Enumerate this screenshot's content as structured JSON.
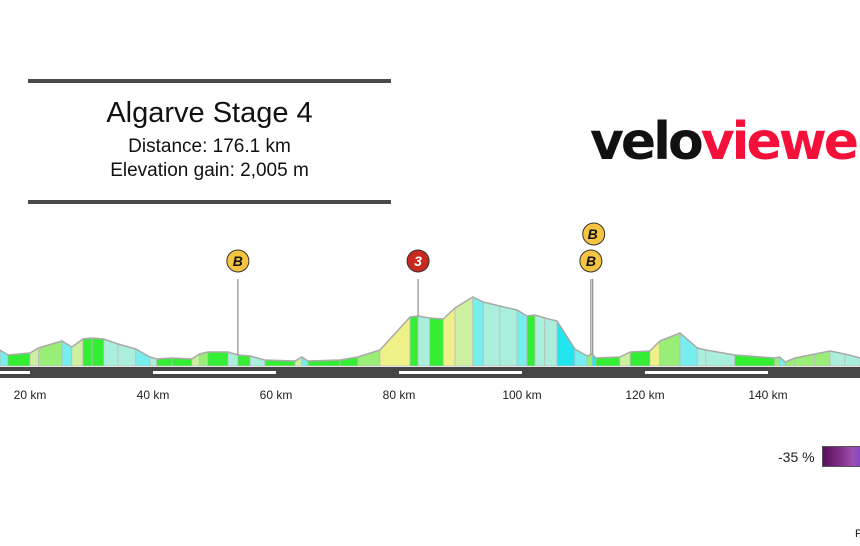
{
  "header": {
    "title": "Algarve Stage 4",
    "distance": "Distance: 176.1 km",
    "elevation_gain": "Elevation gain: 2,005 m"
  },
  "logo": {
    "part1": "velo",
    "part2": "viewer",
    "color1": "#111111",
    "color2": "#f5103a"
  },
  "legend": {
    "min_label": "-35 %"
  },
  "corner_text": "P",
  "chart_data": {
    "type": "area",
    "title": "Algarve Stage 4",
    "x_unit": "km",
    "x_ticks": [
      20,
      40,
      60,
      80,
      100,
      120,
      140
    ],
    "x_tick_labels": [
      "20 km",
      "40 km",
      "60 km",
      "80 km",
      "100 km",
      "120 km",
      "140 km"
    ],
    "profile": [
      [
        15.1,
        112
      ],
      [
        16.4,
        77
      ],
      [
        20,
        91
      ],
      [
        21.4,
        126
      ],
      [
        25.2,
        175
      ],
      [
        26.8,
        133
      ],
      [
        28.6,
        189
      ],
      [
        30.1,
        196
      ],
      [
        32,
        189
      ],
      [
        34.3,
        154
      ],
      [
        37.2,
        119
      ],
      [
        39.5,
        63
      ],
      [
        40.6,
        49
      ],
      [
        43.1,
        56
      ],
      [
        46.3,
        49
      ],
      [
        47.6,
        84
      ],
      [
        48.9,
        98
      ],
      [
        52.2,
        98
      ],
      [
        53.8,
        77
      ],
      [
        55.8,
        70
      ],
      [
        58.2,
        42
      ],
      [
        63.1,
        35
      ],
      [
        64.2,
        63
      ],
      [
        65.2,
        35
      ],
      [
        70.4,
        42
      ],
      [
        73.3,
        63
      ],
      [
        76.9,
        112
      ],
      [
        81.8,
        343
      ],
      [
        83.1,
        350
      ],
      [
        85,
        336
      ],
      [
        87.2,
        329
      ],
      [
        89.1,
        406
      ],
      [
        92,
        483
      ],
      [
        93.7,
        448
      ],
      [
        96.4,
        420
      ],
      [
        99.2,
        392
      ],
      [
        100.8,
        350
      ],
      [
        102.1,
        357
      ],
      [
        103.7,
        336
      ],
      [
        105.7,
        315
      ],
      [
        108.6,
        119
      ],
      [
        110.6,
        70
      ],
      [
        111.4,
        84
      ],
      [
        112,
        56
      ],
      [
        115.9,
        63
      ],
      [
        117.6,
        98
      ],
      [
        120.8,
        105
      ],
      [
        122.4,
        175
      ],
      [
        125.7,
        231
      ],
      [
        128.5,
        126
      ],
      [
        129.9,
        112
      ],
      [
        134.6,
        77
      ],
      [
        141.1,
        56
      ],
      [
        141.9,
        63
      ],
      [
        142.8,
        28
      ],
      [
        144.4,
        56
      ],
      [
        147.6,
        84
      ],
      [
        150.1,
        105
      ],
      [
        152.5,
        84
      ],
      [
        155,
        56
      ]
    ],
    "markers": [
      {
        "km": 53.8,
        "label": "B",
        "type": "bonus-sprint",
        "color": "#f5c542"
      },
      {
        "km": 83.1,
        "label": "3",
        "type": "cat-3-climb",
        "color": "#c8281e"
      },
      {
        "km": 111.2,
        "label": "B",
        "type": "bonus-sprint",
        "color": "#f5c542"
      },
      {
        "km": 111.5,
        "label": "B",
        "type": "bonus-sprint",
        "color": "#f5c542"
      }
    ],
    "gradient_colors": {
      "steep_down": "#22e5f0",
      "down": "#77eeee",
      "slight_down": "#aaeedd",
      "flat": "#33ee33",
      "slight_up": "#99ee77",
      "up": "#ccf0a0",
      "steep_up": "#eef088"
    }
  }
}
